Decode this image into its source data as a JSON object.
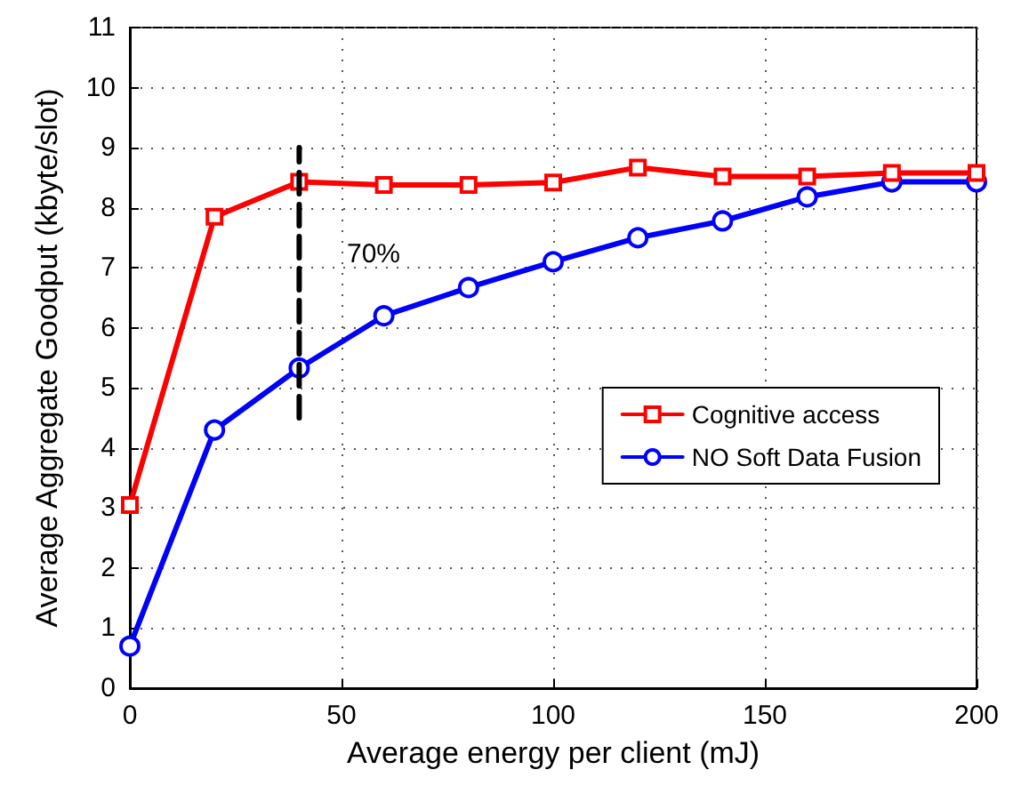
{
  "chart_data": {
    "type": "line",
    "xlabel": "Average energy per client (mJ)",
    "ylabel": "Average Aggregate Goodput (kbyte/slot)",
    "x": [
      0,
      20,
      40,
      60,
      80,
      100,
      120,
      140,
      160,
      180,
      200
    ],
    "series": [
      {
        "name": "Cognitive access",
        "color": "#ff0000",
        "marker": "square",
        "values": [
          3.05,
          7.85,
          8.43,
          8.38,
          8.38,
          8.42,
          8.67,
          8.52,
          8.52,
          8.58,
          8.58
        ]
      },
      {
        "name": "NO Soft Data Fusion",
        "color": "#0000ff",
        "marker": "circle",
        "values": [
          0.7,
          4.3,
          5.33,
          6.2,
          6.67,
          7.1,
          7.5,
          7.78,
          8.18,
          8.43,
          8.43
        ]
      },
      {
        "type": "line",
        "x": [
          40,
          40
        ],
        "values": [
          4.5,
          9.0
        ],
        "color": "#000000",
        "line_style": "dashed",
        "marker": "none"
      }
    ],
    "annotations": [
      "70%"
    ],
    "xlim": [
      0,
      200
    ],
    "xticks": [
      0,
      50,
      100,
      150,
      200
    ],
    "ylim": [
      0,
      11
    ],
    "yticks": [
      0,
      1,
      2,
      3,
      4,
      5,
      6,
      7,
      8,
      9,
      10,
      11
    ],
    "grid": true,
    "legend": "right",
    "line_style": "solid"
  }
}
